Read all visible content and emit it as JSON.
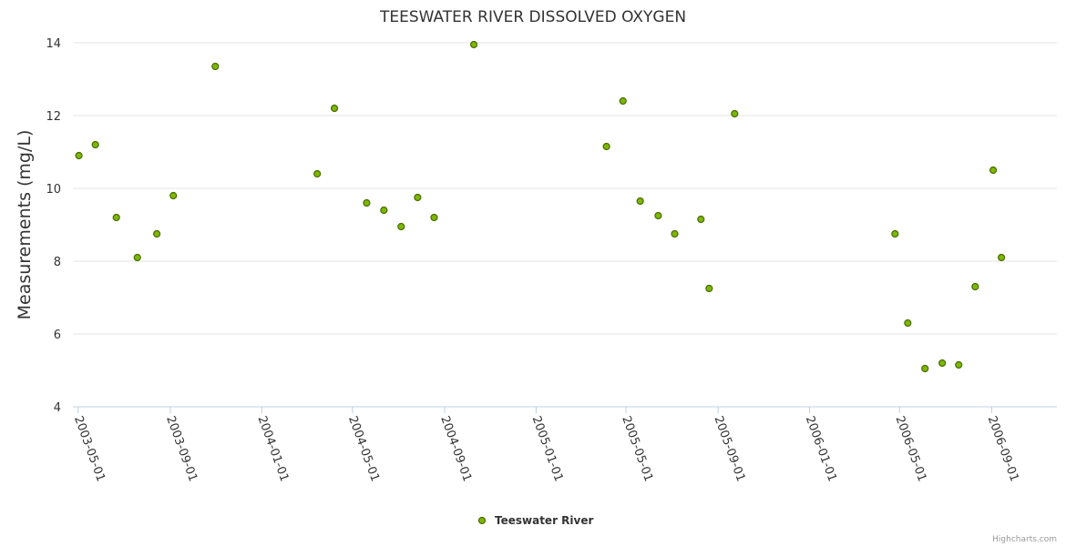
{
  "chart_data": {
    "type": "scatter",
    "title": "TEESWATER RIVER DISSOLVED OXYGEN",
    "xlabel": "",
    "ylabel": "Measurements (mg/L)",
    "ylim": [
      4,
      14
    ],
    "yticks": [
      4,
      6,
      8,
      10,
      12,
      14
    ],
    "xlim": [
      "2003-04-24",
      "2006-11-27"
    ],
    "xticks": [
      "2003-05-01",
      "2003-09-01",
      "2004-01-01",
      "2004-05-01",
      "2004-09-01",
      "2005-01-01",
      "2005-05-01",
      "2005-09-01",
      "2006-01-01",
      "2006-05-01",
      "2006-09-01"
    ],
    "grid": true,
    "legend": "bottom-center",
    "credits": "Highcharts.com",
    "color": "#7cb800",
    "marker_stroke": "#4a6b00",
    "series": [
      {
        "name": "Teeswater River",
        "points": [
          {
            "x": "2003-05-02",
            "y": 10.9
          },
          {
            "x": "2003-05-24",
            "y": 11.2
          },
          {
            "x": "2003-06-21",
            "y": 9.2
          },
          {
            "x": "2003-07-19",
            "y": 8.1
          },
          {
            "x": "2003-08-14",
            "y": 8.75
          },
          {
            "x": "2003-09-05",
            "y": 9.8
          },
          {
            "x": "2003-10-31",
            "y": 13.35
          },
          {
            "x": "2004-03-15",
            "y": 10.4
          },
          {
            "x": "2004-04-07",
            "y": 12.2
          },
          {
            "x": "2004-05-20",
            "y": 9.6
          },
          {
            "x": "2004-06-12",
            "y": 9.4
          },
          {
            "x": "2004-07-05",
            "y": 8.95
          },
          {
            "x": "2004-07-27",
            "y": 9.75
          },
          {
            "x": "2004-08-18",
            "y": 9.2
          },
          {
            "x": "2004-10-10",
            "y": 13.95
          },
          {
            "x": "2005-04-05",
            "y": 11.15
          },
          {
            "x": "2005-04-27",
            "y": 12.4
          },
          {
            "x": "2005-05-20",
            "y": 9.65
          },
          {
            "x": "2005-06-13",
            "y": 9.25
          },
          {
            "x": "2005-07-05",
            "y": 8.75
          },
          {
            "x": "2005-08-09",
            "y": 9.15
          },
          {
            "x": "2005-08-20",
            "y": 7.25
          },
          {
            "x": "2005-09-23",
            "y": 12.05
          },
          {
            "x": "2006-04-25",
            "y": 8.75
          },
          {
            "x": "2006-05-12",
            "y": 6.3
          },
          {
            "x": "2006-06-04",
            "y": 5.05
          },
          {
            "x": "2006-06-27",
            "y": 5.2
          },
          {
            "x": "2006-07-19",
            "y": 5.15
          },
          {
            "x": "2006-08-10",
            "y": 7.3
          },
          {
            "x": "2006-09-03",
            "y": 10.5
          },
          {
            "x": "2006-09-14",
            "y": 8.1
          }
        ]
      }
    ]
  }
}
